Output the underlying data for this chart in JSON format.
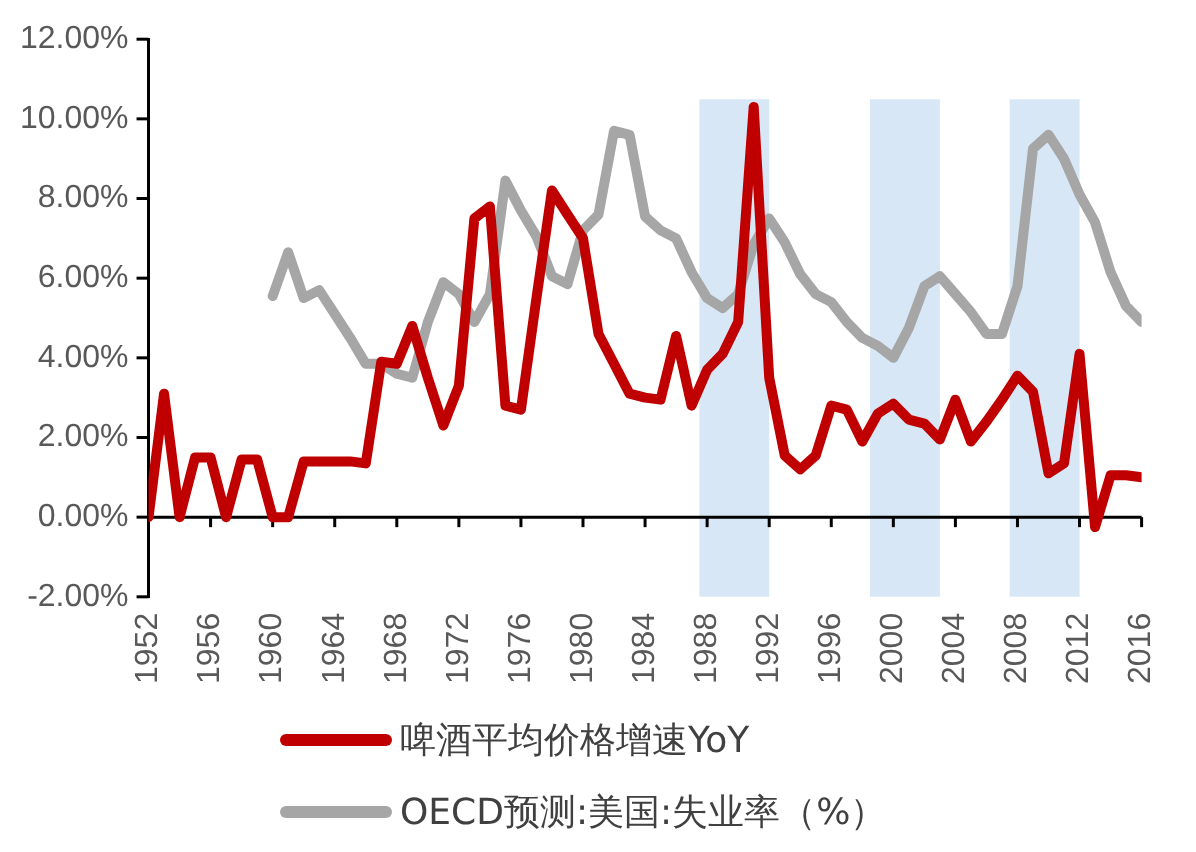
{
  "chart_data": {
    "type": "line",
    "x": [
      1952,
      1953,
      1954,
      1955,
      1956,
      1957,
      1958,
      1959,
      1960,
      1961,
      1962,
      1963,
      1964,
      1965,
      1966,
      1967,
      1968,
      1969,
      1970,
      1971,
      1972,
      1973,
      1974,
      1975,
      1976,
      1977,
      1978,
      1979,
      1980,
      1981,
      1982,
      1983,
      1984,
      1985,
      1986,
      1987,
      1988,
      1989,
      1990,
      1991,
      1992,
      1993,
      1994,
      1995,
      1996,
      1997,
      1998,
      1999,
      2000,
      2001,
      2002,
      2003,
      2004,
      2005,
      2006,
      2007,
      2008,
      2009,
      2010,
      2011,
      2012,
      2013,
      2014,
      2015,
      2016
    ],
    "series": [
      {
        "name": "啤酒平均价格增速YoY",
        "color": "#c00000",
        "values": [
          0,
          3.1,
          0,
          1.5,
          1.5,
          0,
          1.45,
          1.45,
          0,
          0,
          1.4,
          1.4,
          1.4,
          1.4,
          1.35,
          3.9,
          3.85,
          4.8,
          3.5,
          2.3,
          3.3,
          7.5,
          7.8,
          2.8,
          2.7,
          5.5,
          8.2,
          7.6,
          7.0,
          4.6,
          3.85,
          3.1,
          3.0,
          2.95,
          4.55,
          2.8,
          3.7,
          4.1,
          4.9,
          10.3,
          3.5,
          1.55,
          1.2,
          1.55,
          2.8,
          2.7,
          1.9,
          2.6,
          2.85,
          2.45,
          2.35,
          1.95,
          2.95,
          1.9,
          2.4,
          2.95,
          3.55,
          3.15,
          1.1,
          1.35,
          4.1,
          -0.25,
          1.05,
          1.05,
          1.0
        ]
      },
      {
        "name": "OECD预测:美国:失业率（%）",
        "color": "#a6a6a6",
        "values": [
          null,
          null,
          null,
          null,
          null,
          null,
          null,
          null,
          5.55,
          6.65,
          5.5,
          5.7,
          5.1,
          4.5,
          3.85,
          3.85,
          3.6,
          3.5,
          4.9,
          5.9,
          5.6,
          4.9,
          5.6,
          8.45,
          7.7,
          7.05,
          6.05,
          5.85,
          7.2,
          7.6,
          9.7,
          9.6,
          7.55,
          7.2,
          7.0,
          6.15,
          5.5,
          5.25,
          5.6,
          6.85,
          7.5,
          6.9,
          6.1,
          5.6,
          5.4,
          4.9,
          4.5,
          4.3,
          4.0,
          4.75,
          5.8,
          6.05,
          5.6,
          5.15,
          4.6,
          4.6,
          5.8,
          9.25,
          9.6,
          9.0,
          8.1,
          7.4,
          6.15,
          5.3,
          4.9
        ]
      }
    ],
    "xlim": [
      1952,
      2016
    ],
    "xticks": [
      1952,
      1956,
      1960,
      1964,
      1968,
      1972,
      1976,
      1980,
      1984,
      1988,
      1992,
      1996,
      2000,
      2004,
      2008,
      2012,
      2016
    ],
    "ylim": [
      -2,
      12
    ],
    "yticks": [
      {
        "value": -2,
        "label": "-2.00%"
      },
      {
        "value": 0,
        "label": "0.00%"
      },
      {
        "value": 2,
        "label": "2.00%"
      },
      {
        "value": 4,
        "label": "4.00%"
      },
      {
        "value": 6,
        "label": "6.00%"
      },
      {
        "value": 8,
        "label": "8.00%"
      },
      {
        "value": 10,
        "label": "10.00%"
      },
      {
        "value": 12,
        "label": "12.00%"
      }
    ],
    "bands": [
      {
        "axis": "x",
        "from": 1987.5,
        "to": 1992,
        "color": "#bdd7ee"
      },
      {
        "axis": "x",
        "from": 1998.5,
        "to": 2003,
        "color": "#bdd7ee"
      },
      {
        "axis": "x",
        "from": 2007.5,
        "to": 2012,
        "color": "#bdd7ee"
      }
    ],
    "ref_lines": [
      {
        "axis": "y",
        "value": 0,
        "color": "#000000",
        "line_style": "solid"
      }
    ],
    "grid": false,
    "legend": "bottom",
    "marker": "none",
    "line_style": "solid"
  }
}
